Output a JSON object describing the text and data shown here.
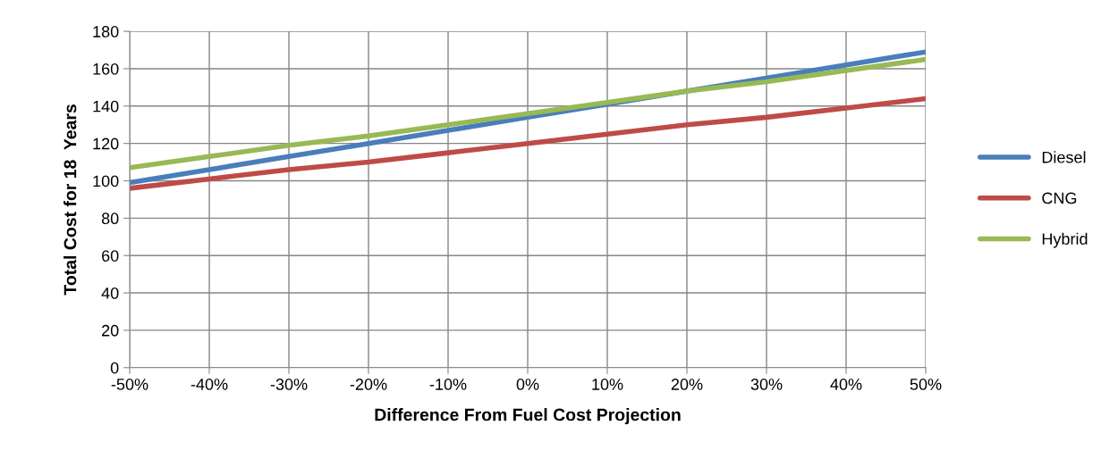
{
  "chart_data": {
    "type": "line",
    "xlabel": "Difference From Fuel Cost Projection",
    "ylabel": "Total Cost for 18  Years",
    "categories": [
      "-50%",
      "-40%",
      "-30%",
      "-20%",
      "-10%",
      "0%",
      "10%",
      "20%",
      "30%",
      "40%",
      "50%"
    ],
    "series": [
      {
        "name": "Diesel",
        "color": "#4a7ebb",
        "values": [
          99,
          106,
          113,
          120,
          127,
          134,
          141,
          148,
          155,
          162,
          169
        ]
      },
      {
        "name": "CNG",
        "color": "#be4b48",
        "values": [
          96,
          101,
          106,
          110,
          115,
          120,
          125,
          130,
          134,
          139,
          144
        ]
      },
      {
        "name": "Hybrid",
        "color": "#98b954",
        "values": [
          107,
          113,
          119,
          124,
          130,
          136,
          142,
          148,
          153,
          159,
          165
        ]
      }
    ],
    "ylim": [
      0,
      180
    ],
    "yticks": [
      0,
      20,
      40,
      60,
      80,
      100,
      120,
      140,
      160,
      180
    ],
    "grid": true,
    "legend": "right",
    "marker": "none",
    "line_style": "solid"
  }
}
